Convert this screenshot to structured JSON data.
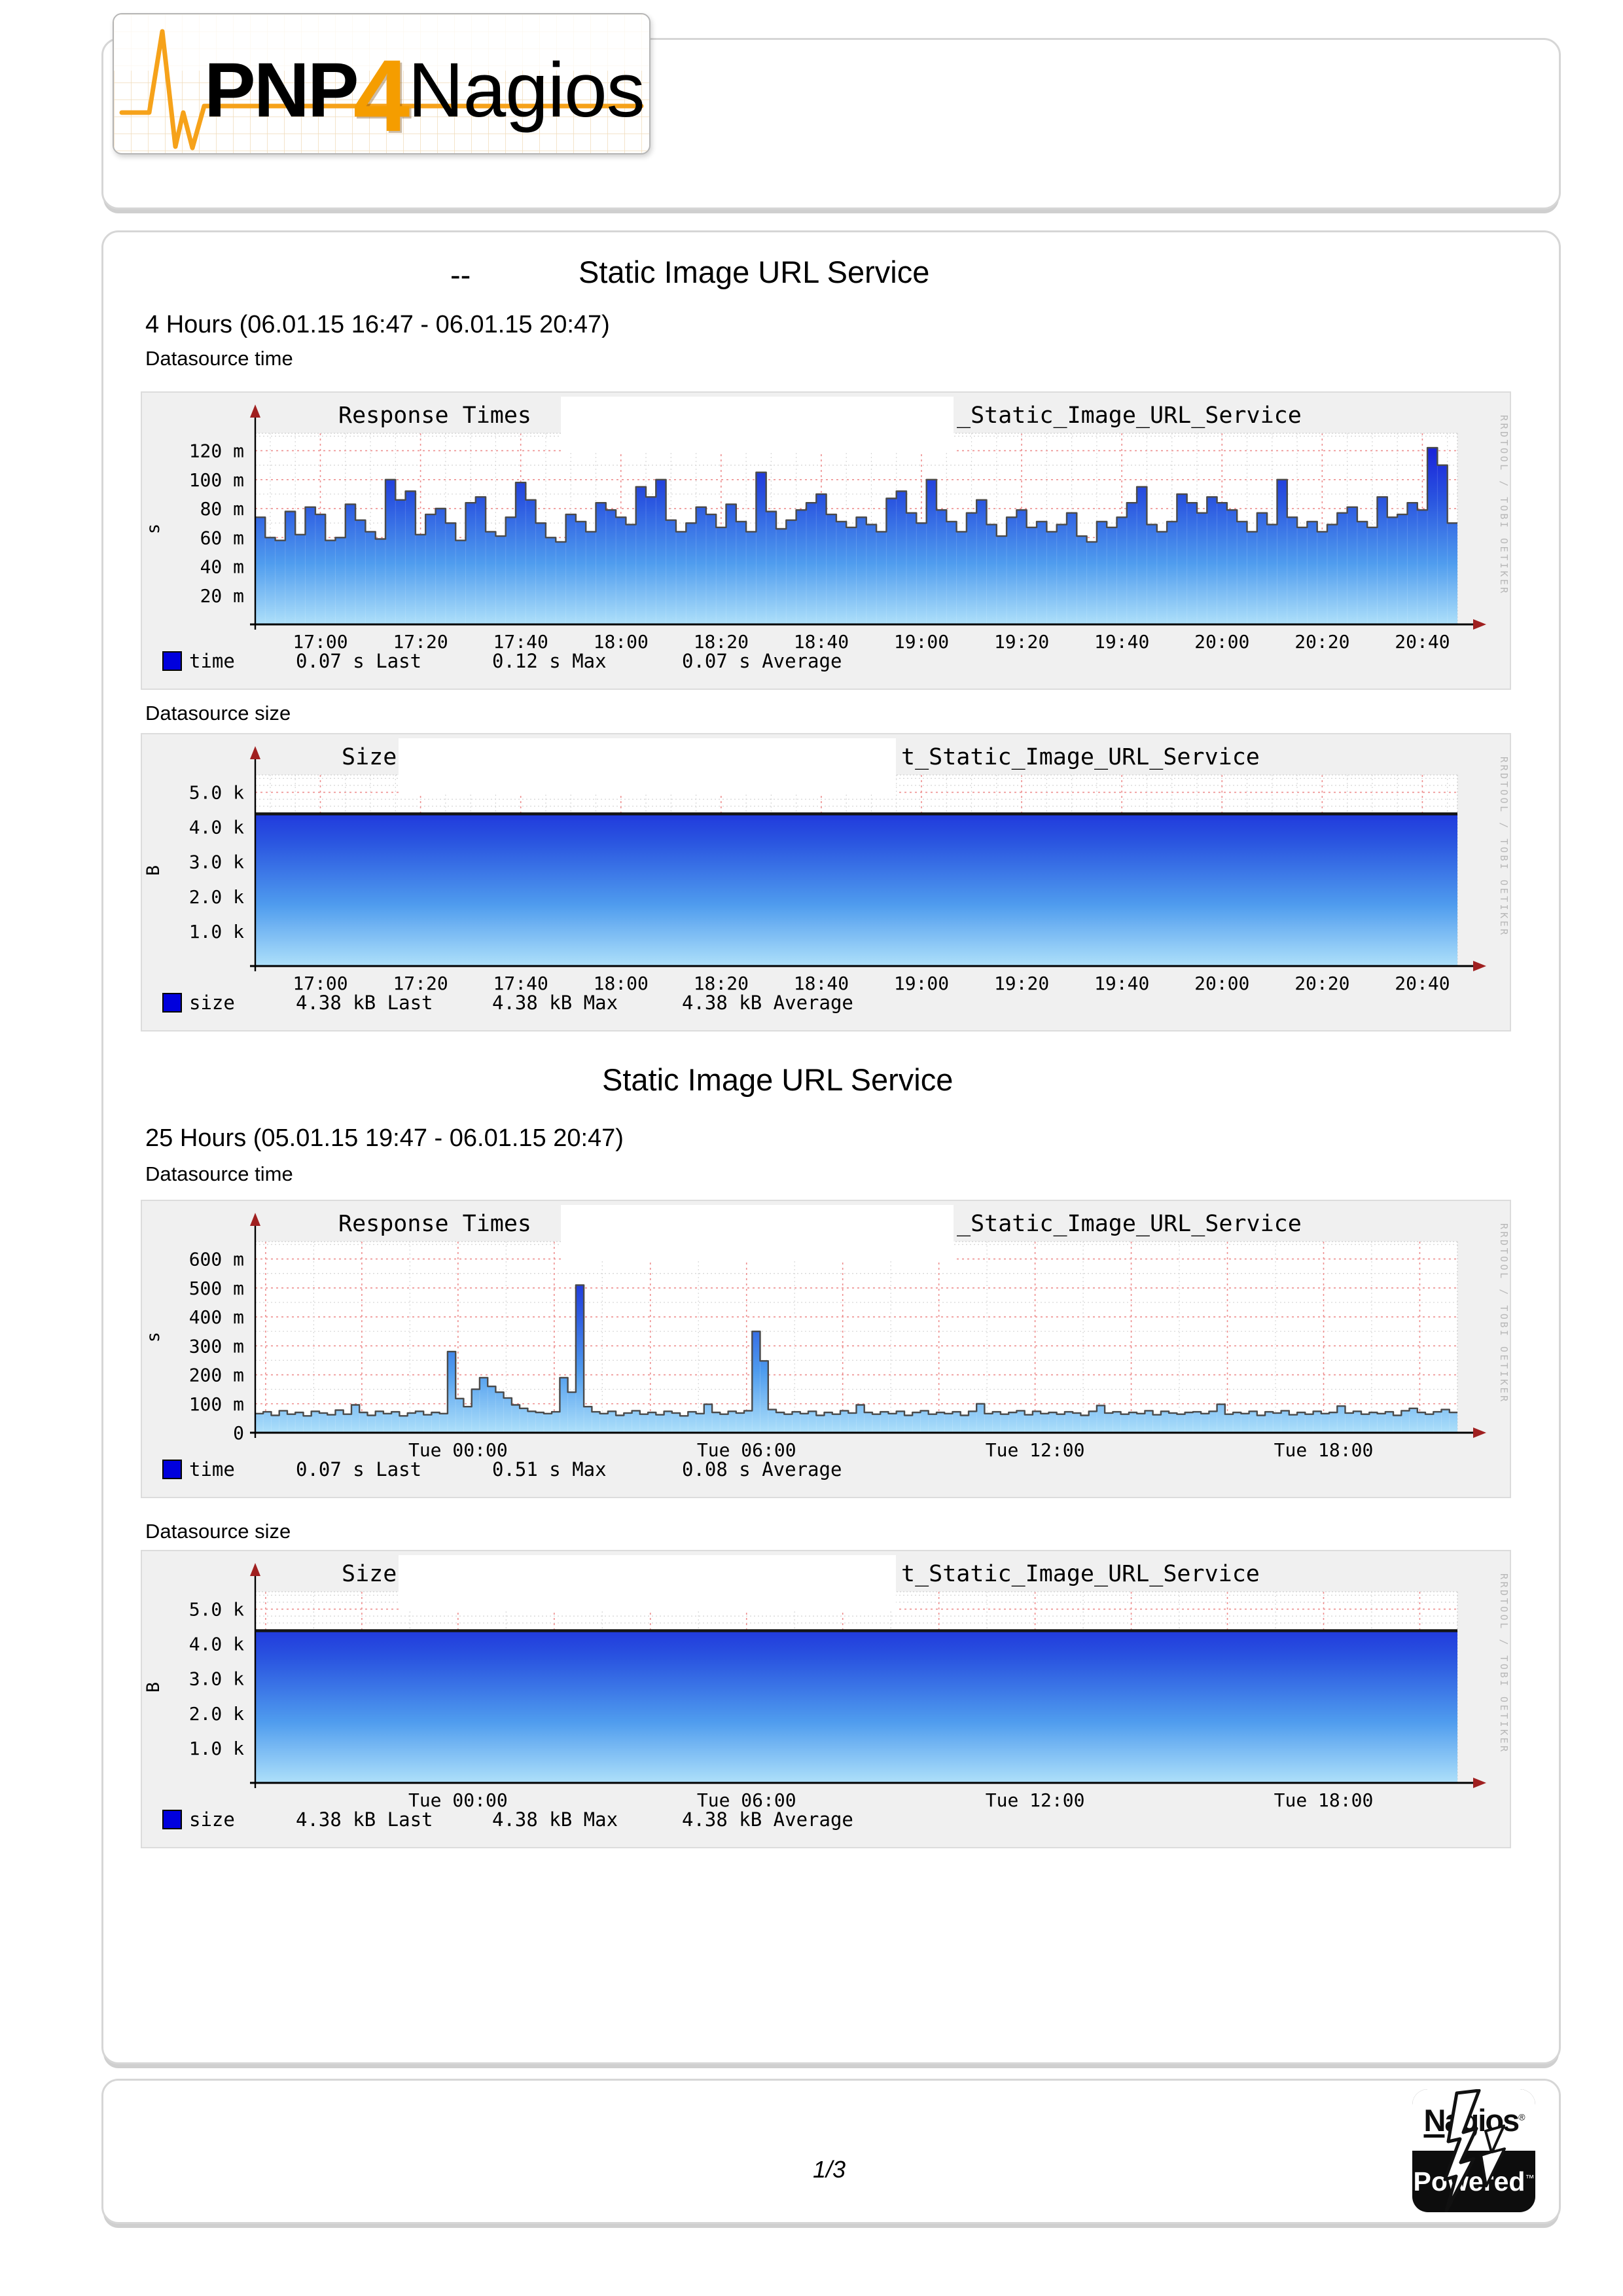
{
  "logo": {
    "pnp": "PNP",
    "four": "4",
    "nagios": "Nagios"
  },
  "badge": {
    "top": "Nagios",
    "bottom": "Powered",
    "reg": "®",
    "tm": "™"
  },
  "page": {
    "number": "1/3"
  },
  "watermark": "RRDTOOL / TOBI OETIKER",
  "colors": {
    "accent_orange": "#f59d00",
    "panel_bg": "#f0f0f0",
    "plot_bg": "#ffffff",
    "grid_minor": "#d8d8d8",
    "grid_major": "#ee8f8f",
    "axis": "#000000",
    "axis_arrow": "#a02020",
    "outline_time": "#4a4a4a",
    "outline_size": "#141414",
    "legend_square": "#0000dd",
    "watermark": "#b8b8b8",
    "gradient": [
      [
        "0%",
        "#1414d8"
      ],
      [
        "35%",
        "#2a55e0"
      ],
      [
        "68%",
        "#4f9cee"
      ],
      [
        "100%",
        "#aee0fa"
      ]
    ]
  },
  "sections": [
    {
      "title_prefix": "--",
      "title": "Static Image URL Service",
      "period": "4 Hours (06.01.15 16:47 - 06.01.15 20:47)",
      "datasource_time_label": "Datasource time",
      "datasource_size_label": "Datasource size"
    },
    {
      "title_prefix": "",
      "title": "Static Image URL Service",
      "period": "25 Hours (05.01.15 19:47 - 06.01.15 20:47)",
      "datasource_time_label": "Datasource time",
      "datasource_size_label": "Datasource size"
    }
  ],
  "chart_data": [
    {
      "id": "response-times-4h",
      "type": "area",
      "kind": "time",
      "title_left": "Response Times",
      "title_right": "_Static_Image_URL_Service",
      "redacted": true,
      "ylabel": "s",
      "ymax": 132,
      "y_minor": 10,
      "y_major": 20,
      "y_ticks": [
        [
          20,
          "20 m"
        ],
        [
          40,
          "40 m"
        ],
        [
          60,
          "60 m"
        ],
        [
          80,
          "80 m"
        ],
        [
          100,
          "100 m"
        ],
        [
          120,
          "120 m"
        ]
      ],
      "span": 240,
      "x_anchor": 13,
      "x_minor": 5,
      "x_major": 20,
      "x_ticks": [
        [
          13,
          "17:00"
        ],
        [
          33,
          "17:20"
        ],
        [
          53,
          "17:40"
        ],
        [
          73,
          "18:00"
        ],
        [
          93,
          "18:20"
        ],
        [
          113,
          "18:40"
        ],
        [
          133,
          "19:00"
        ],
        [
          153,
          "19:20"
        ],
        [
          173,
          "19:40"
        ],
        [
          193,
          "20:00"
        ],
        [
          213,
          "20:20"
        ],
        [
          233,
          "20:40"
        ]
      ],
      "unit": "milliseconds",
      "values": [
        74,
        60,
        58,
        78,
        62,
        81,
        76,
        58,
        60,
        83,
        72,
        64,
        59,
        100,
        86,
        92,
        62,
        76,
        80,
        70,
        58,
        84,
        88,
        64,
        61,
        74,
        98,
        86,
        70,
        60,
        57,
        76,
        71,
        64,
        84,
        79,
        74,
        69,
        95,
        88,
        100,
        72,
        64,
        70,
        81,
        76,
        67,
        83,
        71,
        64,
        105,
        78,
        66,
        72,
        79,
        84,
        90,
        76,
        71,
        67,
        74,
        69,
        64,
        87,
        92,
        77,
        70,
        100,
        79,
        71,
        64,
        77,
        86,
        69,
        61,
        74,
        79,
        67,
        71,
        64,
        69,
        77,
        61,
        57,
        71,
        67,
        74,
        84,
        95,
        69,
        64,
        71,
        90,
        84,
        77,
        88,
        84,
        79,
        71,
        64,
        77,
        69,
        100,
        74,
        67,
        71,
        64,
        69,
        77,
        81,
        71,
        67,
        88,
        74,
        76,
        84,
        79,
        122,
        110,
        70
      ],
      "legend": {
        "name": "time",
        "entries": [
          [
            "0.07 s",
            "Last"
          ],
          [
            "0.12 s",
            "Max"
          ],
          [
            "0.07 s",
            "Average"
          ]
        ]
      }
    },
    {
      "id": "size-4h",
      "type": "area",
      "kind": "size",
      "title_left": "Size",
      "title_right": "t_Static_Image_URL_Service",
      "redacted": true,
      "ylabel": "B",
      "ymax": 5500,
      "y_minor": 200,
      "y_major": 1000,
      "y_ticks": [
        [
          1000,
          "1.0 k"
        ],
        [
          2000,
          "2.0 k"
        ],
        [
          3000,
          "3.0 k"
        ],
        [
          4000,
          "4.0 k"
        ],
        [
          5000,
          "5.0 k"
        ]
      ],
      "span": 240,
      "x_anchor": 13,
      "x_minor": 5,
      "x_major": 20,
      "x_ticks": [
        [
          13,
          "17:00"
        ],
        [
          33,
          "17:20"
        ],
        [
          53,
          "17:40"
        ],
        [
          73,
          "18:00"
        ],
        [
          93,
          "18:20"
        ],
        [
          113,
          "18:40"
        ],
        [
          133,
          "19:00"
        ],
        [
          153,
          "19:20"
        ],
        [
          173,
          "19:40"
        ],
        [
          193,
          "20:00"
        ],
        [
          213,
          "20:20"
        ],
        [
          233,
          "20:40"
        ]
      ],
      "unit": "bytes",
      "values": [
        4380,
        4380
      ],
      "legend": {
        "name": "size",
        "entries": [
          [
            "4.38 kB",
            "Last"
          ],
          [
            "4.38 kB",
            "Max"
          ],
          [
            "4.38 kB",
            "Average"
          ]
        ]
      }
    },
    {
      "id": "response-times-25h",
      "type": "area",
      "kind": "time",
      "title_left": "Response Times",
      "title_right": "_Static_Image_URL_Service",
      "redacted": true,
      "ylabel": "s",
      "ymax": 660,
      "y_minor": 50,
      "y_major": 100,
      "y_ticks": [
        [
          0,
          "0"
        ],
        [
          100,
          "100 m"
        ],
        [
          200,
          "200 m"
        ],
        [
          300,
          "300 m"
        ],
        [
          400,
          "400 m"
        ],
        [
          500,
          "500 m"
        ],
        [
          600,
          "600 m"
        ]
      ],
      "span": 1500,
      "x_anchor": 253,
      "x_minor": 60,
      "x_major": 120,
      "x_ticks": [
        [
          253,
          "Tue 00:00"
        ],
        [
          613,
          "Tue 06:00"
        ],
        [
          973,
          "Tue 12:00"
        ],
        [
          1333,
          "Tue 18:00"
        ]
      ],
      "unit": "milliseconds",
      "values": [
        66,
        72,
        60,
        76,
        64,
        70,
        58,
        74,
        68,
        62,
        78,
        64,
        96,
        70,
        60,
        74,
        66,
        72,
        58,
        68,
        74,
        62,
        70,
        66,
        280,
        118,
        90,
        150,
        190,
        160,
        140,
        120,
        96,
        84,
        74,
        70,
        66,
        72,
        190,
        140,
        510,
        90,
        72,
        66,
        74,
        60,
        68,
        76,
        64,
        70,
        62,
        74,
        68,
        58,
        72,
        66,
        98,
        70,
        64,
        74,
        68,
        76,
        350,
        248,
        80,
        70,
        64,
        72,
        66,
        74,
        60,
        70,
        64,
        76,
        68,
        96,
        70,
        64,
        72,
        66,
        74,
        60,
        70,
        76,
        64,
        70,
        66,
        72,
        60,
        74,
        100,
        66,
        72,
        64,
        70,
        76,
        62,
        74,
        66,
        70,
        64,
        72,
        68,
        60,
        74,
        94,
        68,
        72,
        64,
        70,
        66,
        76,
        62,
        74,
        68,
        64,
        70,
        72,
        66,
        74,
        98,
        64,
        70,
        66,
        74,
        60,
        72,
        68,
        76,
        62,
        70,
        64,
        74,
        66,
        70,
        92,
        68,
        74,
        64,
        70,
        66,
        72,
        60,
        76,
        84,
        70,
        64,
        72,
        80,
        70
      ],
      "legend": {
        "name": "time",
        "entries": [
          [
            "0.07 s",
            "Last"
          ],
          [
            "0.51 s",
            "Max"
          ],
          [
            "0.08 s",
            "Average"
          ]
        ]
      }
    },
    {
      "id": "size-25h",
      "type": "area",
      "kind": "size",
      "title_left": "Size",
      "title_right": "t_Static_Image_URL_Service",
      "redacted": true,
      "ylabel": "B",
      "ymax": 5500,
      "y_minor": 200,
      "y_major": 1000,
      "y_ticks": [
        [
          1000,
          "1.0 k"
        ],
        [
          2000,
          "2.0 k"
        ],
        [
          3000,
          "3.0 k"
        ],
        [
          4000,
          "4.0 k"
        ],
        [
          5000,
          "5.0 k"
        ]
      ],
      "span": 1500,
      "x_anchor": 253,
      "x_minor": 60,
      "x_major": 120,
      "x_ticks": [
        [
          253,
          "Tue 00:00"
        ],
        [
          613,
          "Tue 06:00"
        ],
        [
          973,
          "Tue 12:00"
        ],
        [
          1333,
          "Tue 18:00"
        ]
      ],
      "unit": "bytes",
      "values": [
        4380,
        4380
      ],
      "legend": {
        "name": "size",
        "entries": [
          [
            "4.38 kB",
            "Last"
          ],
          [
            "4.38 kB",
            "Max"
          ],
          [
            "4.38 kB",
            "Average"
          ]
        ]
      }
    }
  ]
}
